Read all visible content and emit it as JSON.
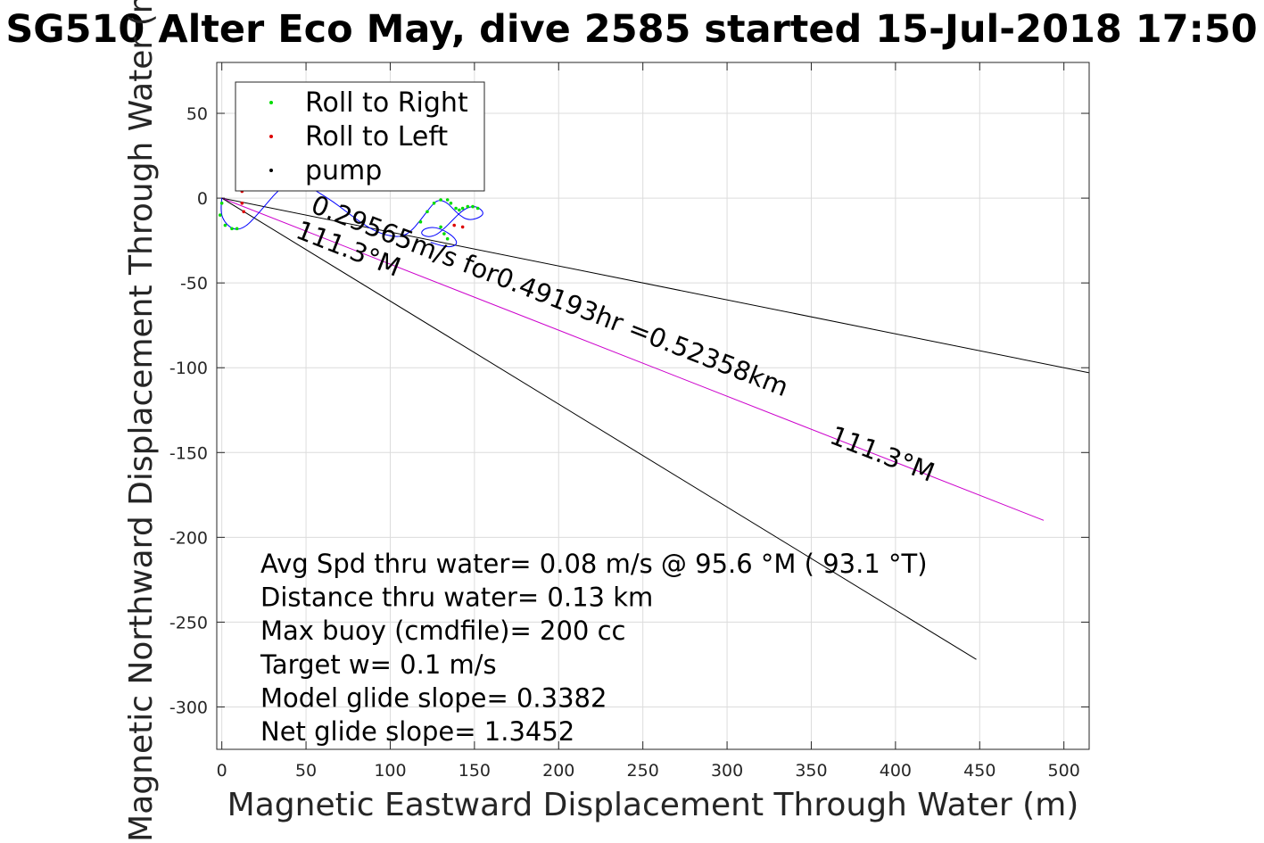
{
  "chart_data": {
    "type": "line",
    "title": "SG510 Alter Eco May, dive 2585 started 15-Jul-2018 17:50",
    "xlabel": "Magnetic Eastward Displacement Through Water (m)",
    "ylabel": "Magnetic Northward Displacement Through Water (m)",
    "xlim": [
      -3,
      515
    ],
    "ylim": [
      -325,
      80
    ],
    "xticks": [
      0,
      50,
      100,
      150,
      200,
      250,
      300,
      350,
      400,
      450,
      500
    ],
    "yticks": [
      50,
      0,
      -50,
      -100,
      -150,
      -200,
      -250,
      -300
    ],
    "grid": true,
    "legend": {
      "placement": "top-left",
      "entries": [
        {
          "label": "Roll to Right",
          "color": "#00dd00",
          "marker": "dot"
        },
        {
          "label": "Roll to Left",
          "color": "#dd0000",
          "marker": "dot"
        },
        {
          "label": "pump",
          "color": "#000000",
          "marker": "dot"
        }
      ]
    },
    "lines": [
      {
        "color": "#000000",
        "x": [
          0,
          515
        ],
        "y": [
          0,
          -103
        ]
      },
      {
        "color": "#cc00cc",
        "x": [
          0,
          488
        ],
        "y": [
          0,
          -190
        ]
      },
      {
        "color": "#000000",
        "x": [
          0,
          448
        ],
        "y": [
          0,
          -272
        ]
      }
    ],
    "track": {
      "color": "#0000ff",
      "x": [
        0,
        -1,
        2,
        8,
        14,
        20,
        26,
        32,
        38,
        44,
        50,
        58,
        66,
        74,
        82,
        90,
        98,
        106,
        112,
        118,
        124,
        128,
        133,
        137,
        141,
        146,
        152,
        156,
        152,
        147,
        142,
        137,
        132,
        127,
        122,
        118,
        120,
        126,
        132,
        138,
        140,
        136,
        130,
        124
      ],
      "y": [
        0,
        -8,
        -15,
        -19,
        -17,
        -11,
        -4,
        3,
        8,
        10,
        8,
        3,
        -2,
        -8,
        -14,
        -19,
        -22,
        -23,
        -20,
        -13,
        -5,
        -1,
        -2,
        -6,
        -10,
        -13,
        -12,
        -9,
        -5,
        -5,
        -8,
        -13,
        -18,
        -22,
        -23,
        -21,
        -18,
        -17,
        -19,
        -23,
        -27,
        -29,
        -28,
        -26
      ]
    },
    "roll_right": {
      "color": "#00dd00",
      "x": [
        0,
        -1,
        2,
        6,
        9,
        118,
        122,
        126,
        130,
        134,
        136,
        139,
        141,
        143,
        146,
        149,
        152,
        130,
        132,
        134
      ],
      "y": [
        -3,
        -10,
        -16,
        -18,
        -18,
        -14,
        -8,
        -3,
        -1,
        -1,
        -3,
        -6,
        -7,
        -6,
        -5,
        -5,
        -6,
        -17,
        -21,
        -24
      ]
    },
    "roll_left": {
      "color": "#dd0000",
      "x": [
        12,
        12,
        13,
        138,
        143
      ],
      "y": [
        4,
        -3,
        -8,
        -16,
        -17
      ]
    },
    "annotations": [
      {
        "text": "0.29565m/s for0.49193hr =0.52358km",
        "x": 52,
        "y": -8,
        "rotation": 21.3
      },
      {
        "text": "111.3°M",
        "x": 43,
        "y": -23,
        "rotation": 21.3
      },
      {
        "text": "111.3°M",
        "x": 360,
        "y": -144,
        "rotation": 21.3
      }
    ],
    "stats": [
      "Avg Spd thru water=  0.08 m/s @  95.6 °M ( 93.1 °T)",
      "Distance thru water=  0.13 km",
      "Max buoy (cmdfile)= 200 cc",
      "Target w= 0.1 m/s",
      "Model glide slope= 0.3382",
      "Net glide slope= 1.3452"
    ]
  }
}
